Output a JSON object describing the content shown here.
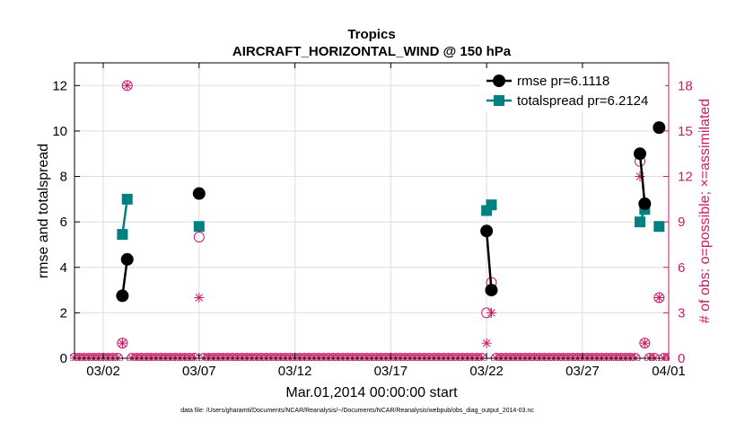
{
  "chart_data": {
    "type": "line",
    "title": "Tropics",
    "subtitle": "AIRCRAFT_HORIZONTAL_WIND @ 150 hPa",
    "xlabel": "Mar.01,2014 00:00:00 start",
    "ylabel": "rmse and totalspread",
    "y2label": "# of obs: o=possible; ×=assimilated",
    "footnote": "data file: /Users/gharamti/Documents/NCAR/Reanalysis/~/Documents/NCAR/Reanalysis/webpub/obs_diag_output_2014-03.nc",
    "xlim": [
      0,
      31
    ],
    "ylim": [
      0,
      13
    ],
    "y2lim": [
      0,
      19.5
    ],
    "x_ticks": [
      {
        "x": 1.5,
        "label": "03/02"
      },
      {
        "x": 6.5,
        "label": "03/07"
      },
      {
        "x": 11.5,
        "label": "03/12"
      },
      {
        "x": 16.5,
        "label": "03/17"
      },
      {
        "x": 21.5,
        "label": "03/22"
      },
      {
        "x": 26.5,
        "label": "03/27"
      },
      {
        "x": 31.0,
        "label": "04/01"
      }
    ],
    "y_ticks": [
      "0",
      "2",
      "4",
      "6",
      "8",
      "10",
      "12"
    ],
    "y2_ticks": [
      "0",
      "3",
      "6",
      "9",
      "12",
      "15",
      "18"
    ],
    "colors": {
      "rmse": "#000000",
      "spread": "#008080",
      "obs": "#cc1a66",
      "grid": "#dddddd"
    },
    "legend": {
      "position": "top-right",
      "entries": [
        "rmse pr=6.1118",
        "totalspread pr=6.2124"
      ]
    },
    "rmse_segments": [
      [
        {
          "x": 2.5,
          "y": 2.75
        },
        {
          "x": 2.75,
          "y": 4.35
        }
      ],
      [
        {
          "x": 6.5,
          "y": 7.25
        }
      ],
      [
        {
          "x": 21.5,
          "y": 5.6
        },
        {
          "x": 21.75,
          "y": 3.0
        }
      ],
      [
        {
          "x": 29.5,
          "y": 9.0
        },
        {
          "x": 29.75,
          "y": 6.8
        }
      ],
      [
        {
          "x": 30.5,
          "y": 10.15
        }
      ]
    ],
    "spread_segments": [
      [
        {
          "x": 2.5,
          "y": 5.45
        },
        {
          "x": 2.75,
          "y": 7.0
        }
      ],
      [
        {
          "x": 6.5,
          "y": 5.8
        }
      ],
      [
        {
          "x": 21.5,
          "y": 6.5
        },
        {
          "x": 21.75,
          "y": 6.75
        }
      ],
      [
        {
          "x": 29.5,
          "y": 6.0
        },
        {
          "x": 29.75,
          "y": 6.55
        }
      ],
      [
        {
          "x": 30.5,
          "y": 5.8
        }
      ]
    ],
    "obs_possible": [
      {
        "x": 2.75,
        "n": 18
      },
      {
        "x": 2.5,
        "n": 1
      },
      {
        "x": 6.5,
        "n": 8
      },
      {
        "x": 21.5,
        "n": 3
      },
      {
        "x": 21.75,
        "n": 5
      },
      {
        "x": 29.5,
        "n": 13
      },
      {
        "x": 29.75,
        "n": 1
      },
      {
        "x": 30.5,
        "n": 4
      }
    ],
    "obs_assimilated": [
      {
        "x": 2.75,
        "n": 18
      },
      {
        "x": 2.5,
        "n": 1
      },
      {
        "x": 6.5,
        "n": 4
      },
      {
        "x": 21.5,
        "n": 1
      },
      {
        "x": 21.75,
        "n": 3
      },
      {
        "x": 29.5,
        "n": 12
      },
      {
        "x": 29.75,
        "n": 1
      },
      {
        "x": 30.5,
        "n": 4
      }
    ],
    "zero_obs_x_start": 0,
    "zero_obs_x_end": 31,
    "zero_obs_step": 0.25
  }
}
